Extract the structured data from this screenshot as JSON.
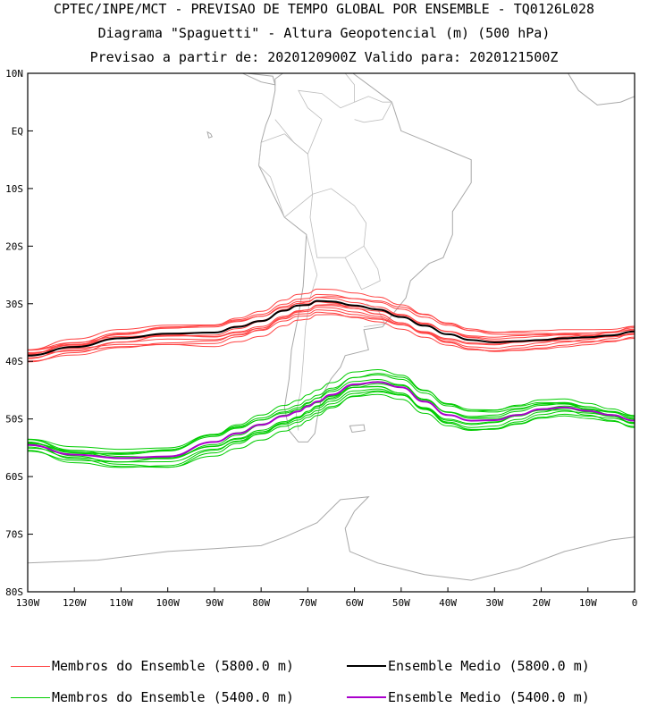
{
  "titles": {
    "line1": "CPTEC/INPE/MCT - PREVISAO DE TEMPO GLOBAL POR ENSEMBLE - TQ0126L028",
    "line2": "Diagrama \"Spaguetti\" - Altura Geopotencial (m) (500 hPa)",
    "line3": "Previsao a partir de: 2020120900Z  Valido para: 2020121500Z"
  },
  "chart_data": {
    "type": "line",
    "xlim": [
      -130,
      0
    ],
    "ylim": [
      -80,
      10
    ],
    "x_ticks": [
      "130W",
      "120W",
      "110W",
      "100W",
      "90W",
      "80W",
      "70W",
      "60W",
      "50W",
      "40W",
      "30W",
      "20W",
      "10W",
      "0"
    ],
    "y_ticks": [
      "10N",
      "EQ",
      "10S",
      "20S",
      "30S",
      "40S",
      "50S",
      "60S",
      "70S",
      "80S"
    ],
    "x": [
      -130,
      -120,
      -110,
      -100,
      -90,
      -85,
      -80,
      -75,
      -72,
      -70,
      -68,
      -65,
      -60,
      -55,
      -50,
      -45,
      -40,
      -35,
      -30,
      -25,
      -20,
      -15,
      -10,
      -5,
      0
    ],
    "series": [
      {
        "name": "Ensemble Medio (5800.0 m)",
        "color": "#000000",
        "values": [
          -39,
          -37.5,
          -36,
          -35.2,
          -35,
          -34,
          -33,
          -31.2,
          -30.3,
          -30.2,
          -29.5,
          -29.6,
          -30.3,
          -31,
          -32.3,
          -33.8,
          -35.3,
          -36.3,
          -36.7,
          -36.5,
          -36.3,
          -36,
          -35.8,
          -35.5,
          -34.8
        ]
      },
      {
        "name": "Ensemble Medio (5400.0 m)",
        "color": "#aa00cc",
        "values": [
          -54.5,
          -56.2,
          -56.8,
          -56.5,
          -54,
          -52.5,
          -51,
          -49.5,
          -48.7,
          -47.8,
          -47,
          -45.8,
          -44,
          -43.6,
          -44.5,
          -47,
          -49.3,
          -50.3,
          -50.2,
          -49.3,
          -48.3,
          -48,
          -48.6,
          -49.3,
          -50.3
        ]
      }
    ],
    "ensemble_5800": {
      "name": "Membros do Ensemble (5800.0 m)",
      "color": "#ff4444",
      "count": 12
    },
    "ensemble_5400": {
      "name": "Membros do Ensemble (5400.0 m)",
      "color": "#00cc00",
      "count": 12
    }
  },
  "legend": {
    "members_5800": "Membros do Ensemble (5800.0 m)",
    "mean_5800": "Ensemble Medio (5800.0 m)",
    "members_5400": "Membros do Ensemble (5400.0 m)",
    "mean_5400": "Ensemble Medio (5400.0 m)"
  }
}
